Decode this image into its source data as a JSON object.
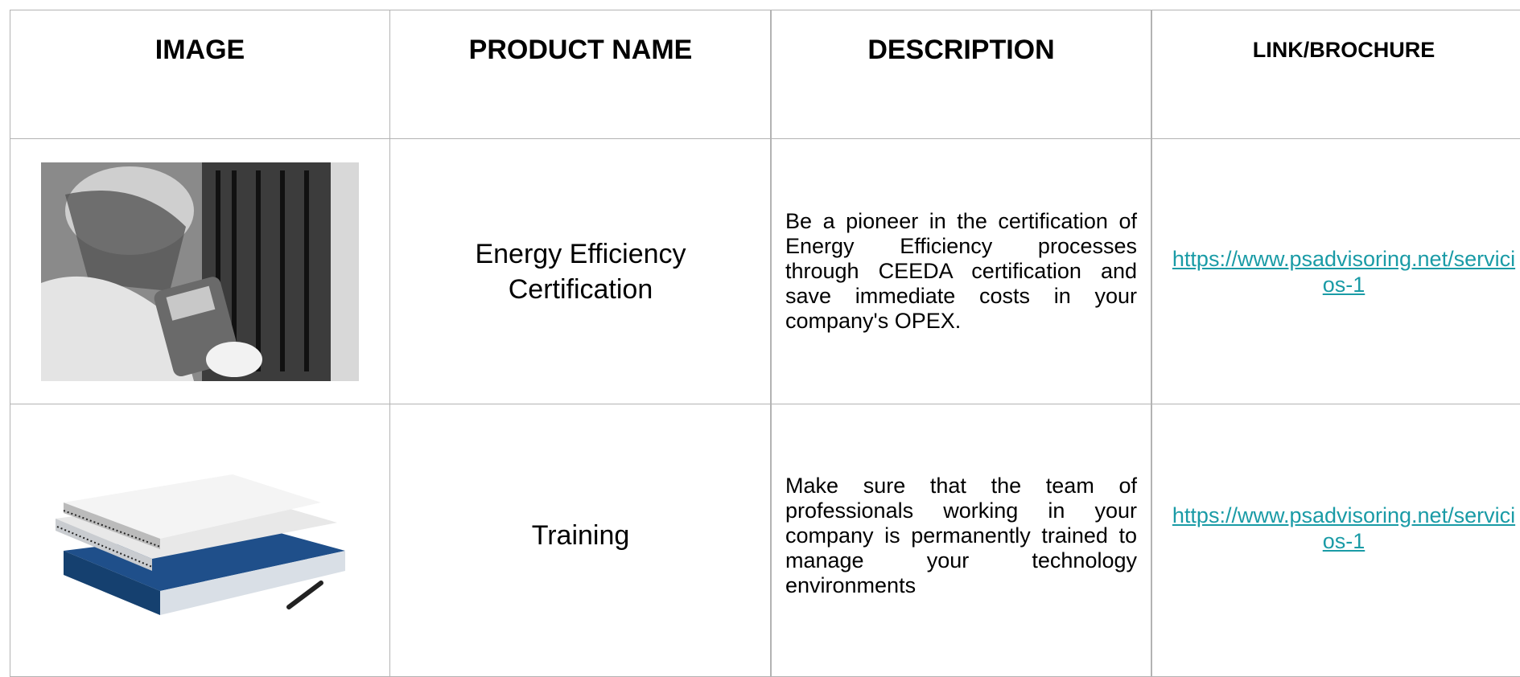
{
  "table": {
    "headers": [
      "IMAGE",
      "PRODUCT NAME",
      "DESCRIPTION",
      "LINK/BROCHURE"
    ],
    "rows": [
      {
        "product_name": "Energy Efficiency Certification",
        "description": "Be a pioneer in the certification of Energy Efficiency processes through CEEDA certification and save immediate costs in your company's OPEX.",
        "link": "https://www.psadvisoring.net/servicios-1"
      },
      {
        "product_name": "Training",
        "description": "Make sure that the team of professionals working in your company is permanently trained to manage your technology environments",
        "link": "https://www.psadvisoring.net/servicios-1"
      }
    ]
  }
}
